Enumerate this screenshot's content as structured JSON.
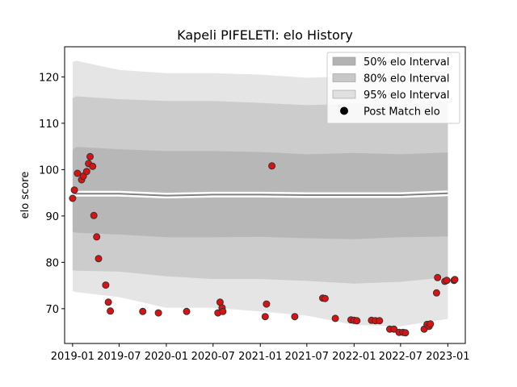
{
  "chart_data": {
    "type": "line",
    "title": "Kapeli PIFELETI: elo History",
    "xlabel": "",
    "ylabel": "elo score",
    "xlim": [
      "2018-12-01",
      "2023-03-10"
    ],
    "ylim": [
      62.5,
      126.5
    ],
    "x_ticks": [
      "2019-01",
      "2019-07",
      "2020-01",
      "2020-07",
      "2021-01",
      "2021-07",
      "2022-01",
      "2022-07",
      "2023-01"
    ],
    "y_ticks": [
      70,
      80,
      90,
      100,
      110,
      120
    ],
    "grid": false,
    "legend_position": "top-right",
    "legend": [
      {
        "label": "50% elo Interval",
        "kind": "band50"
      },
      {
        "label": "80% elo Interval",
        "kind": "band80"
      },
      {
        "label": "95% elo Interval",
        "kind": "band95"
      },
      {
        "label": "Post Match elo",
        "kind": "point"
      }
    ],
    "colors": {
      "band50": "#b3b3b3",
      "band80": "#c8c8c8",
      "band95": "#e0e0e0",
      "median": "#808080",
      "point_fill": "#dd1111",
      "point_edge": "#333333"
    },
    "series": [
      {
        "kind": "band95",
        "x": [
          "2019-01-01",
          "2019-01-15",
          "2019-07-01",
          "2020-01-01",
          "2020-07-01",
          "2021-01-01",
          "2021-07-01",
          "2022-01-01",
          "2022-07-01",
          "2023-01-01"
        ],
        "upper": [
          123.2,
          123.5,
          121.5,
          120.8,
          120.8,
          120.5,
          119.8,
          120.2,
          120.0,
          121.4
        ],
        "lower": [
          73.8,
          73.6,
          72.5,
          70.2,
          70.2,
          69.4,
          68.5,
          66.5,
          66.2,
          67.8
        ]
      },
      {
        "kind": "band80",
        "x": [
          "2019-01-01",
          "2019-01-15",
          "2019-07-01",
          "2020-01-01",
          "2020-07-01",
          "2021-01-01",
          "2021-07-01",
          "2022-01-01",
          "2022-07-01",
          "2023-01-01"
        ],
        "upper": [
          115.4,
          115.8,
          115.2,
          114.8,
          114.8,
          114.4,
          113.9,
          114.2,
          114.0,
          114.6
        ],
        "lower": [
          78.3,
          78.2,
          78.0,
          77.0,
          76.4,
          76.4,
          76.0,
          75.4,
          75.8,
          76.8
        ]
      },
      {
        "kind": "band50",
        "x": [
          "2019-01-01",
          "2019-01-15",
          "2019-07-01",
          "2020-01-01",
          "2020-07-01",
          "2021-01-01",
          "2021-07-01",
          "2022-01-01",
          "2022-07-01",
          "2023-01-01"
        ],
        "upper": [
          104.3,
          104.9,
          104.4,
          104.0,
          104.0,
          103.8,
          103.3,
          103.6,
          103.3,
          103.7
        ],
        "lower": [
          86.6,
          86.4,
          86.0,
          85.4,
          85.4,
          85.5,
          85.2,
          85.0,
          85.4,
          85.6
        ]
      },
      {
        "kind": "median",
        "x": [
          "2019-01-01",
          "2019-01-15",
          "2019-07-01",
          "2020-01-01",
          "2020-07-01",
          "2021-01-01",
          "2021-07-01",
          "2022-01-01",
          "2022-07-01",
          "2023-01-01"
        ],
        "y": [
          95.0,
          94.8,
          94.8,
          94.4,
          94.6,
          94.6,
          94.5,
          94.5,
          94.5,
          94.9
        ]
      },
      {
        "kind": "point",
        "name": "Post Match elo",
        "x": [
          "2019-01-01",
          "2019-01-08",
          "2019-01-20",
          "2019-02-05",
          "2019-02-12",
          "2019-02-25",
          "2019-03-04",
          "2019-03-10",
          "2019-03-20",
          "2019-03-25",
          "2019-04-05",
          "2019-04-12",
          "2019-05-10",
          "2019-05-20",
          "2019-05-28",
          "2019-10-01",
          "2019-12-01",
          "2020-03-20",
          "2020-07-20",
          "2020-07-28",
          "2020-08-05",
          "2020-08-08",
          "2021-01-20",
          "2021-01-25",
          "2021-02-15",
          "2021-05-15",
          "2021-09-01",
          "2021-09-10",
          "2021-10-20",
          "2021-12-20",
          "2022-01-01",
          "2022-01-12",
          "2022-03-10",
          "2022-03-25",
          "2022-04-10",
          "2022-05-20",
          "2022-06-05",
          "2022-06-25",
          "2022-07-10",
          "2022-07-20",
          "2022-10-01",
          "2022-10-12",
          "2022-10-20",
          "2022-10-25",
          "2022-11-18",
          "2022-11-22",
          "2022-12-20",
          "2022-12-28",
          "2023-01-25",
          "2023-01-28"
        ],
        "y": [
          93.8,
          95.6,
          99.2,
          97.8,
          98.6,
          99.6,
          101.3,
          102.8,
          100.7,
          90.1,
          85.5,
          80.8,
          75.1,
          71.4,
          69.5,
          69.4,
          69.1,
          69.4,
          69.1,
          71.4,
          70.2,
          69.4,
          68.3,
          71.0,
          100.8,
          68.3,
          72.3,
          72.2,
          67.9,
          67.6,
          67.5,
          67.4,
          67.5,
          67.4,
          67.4,
          65.6,
          65.6,
          64.9,
          64.9,
          64.8,
          65.6,
          66.6,
          66.2,
          66.7,
          73.4,
          76.7,
          75.9,
          76.1,
          76.1,
          76.3
        ]
      }
    ]
  }
}
